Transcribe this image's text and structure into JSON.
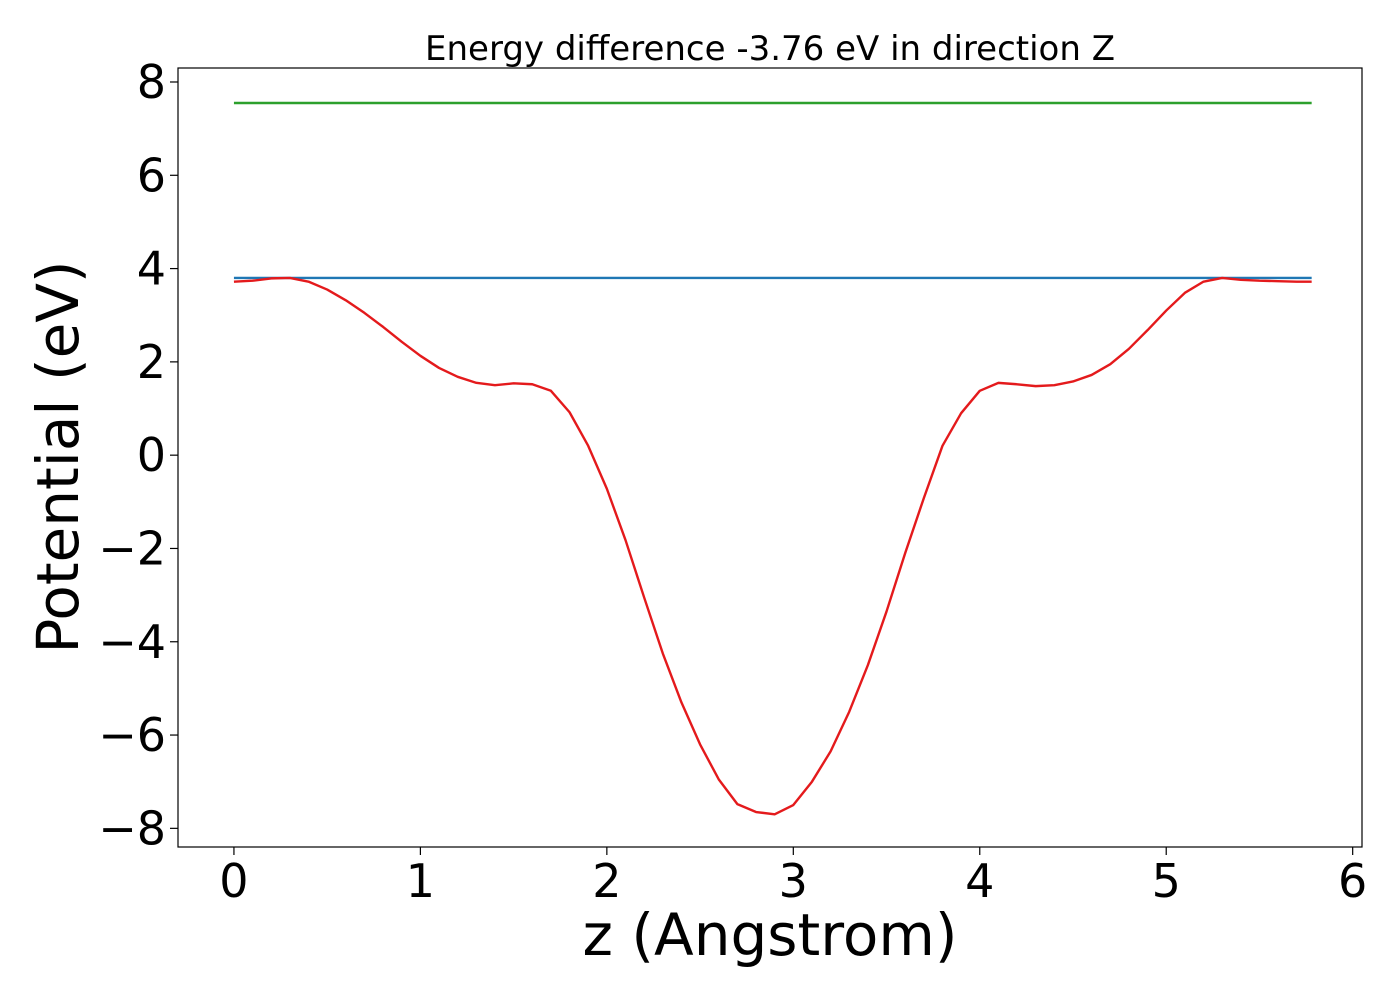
{
  "chart_data": {
    "type": "line",
    "title": "Energy difference -3.76 eV in direction Z",
    "xlabel": "z (Angstrom)",
    "ylabel": "Potential (eV)",
    "xlim": [
      -0.3,
      6.05
    ],
    "ylim": [
      -8.4,
      8.3
    ],
    "xticks": [
      0,
      1,
      2,
      3,
      4,
      5,
      6
    ],
    "xtick_labels": [
      "0",
      "1",
      "2",
      "3",
      "4",
      "5",
      "6"
    ],
    "yticks": [
      8,
      6,
      4,
      2,
      0,
      -2,
      -4,
      -6,
      -8
    ],
    "ytick_labels": [
      "8",
      "6",
      "4",
      "2",
      "0",
      "−2",
      "−4",
      "−6",
      "−8"
    ],
    "grid": false,
    "series": [
      {
        "color": "#2ca02c",
        "x": [
          0,
          5.78
        ],
        "y": [
          7.55,
          7.55
        ]
      },
      {
        "color": "#1f77b4",
        "x": [
          0,
          5.78
        ],
        "y": [
          3.8,
          3.8
        ]
      },
      {
        "color": "#e41a1c",
        "x": [
          0,
          0.1,
          0.2,
          0.3,
          0.4,
          0.5,
          0.6,
          0.7,
          0.8,
          0.9,
          1.0,
          1.1,
          1.2,
          1.3,
          1.4,
          1.5,
          1.6,
          1.7,
          1.8,
          1.9,
          2.0,
          2.1,
          2.2,
          2.3,
          2.4,
          2.5,
          2.6,
          2.7,
          2.8,
          2.9,
          3.0,
          3.1,
          3.2,
          3.3,
          3.4,
          3.5,
          3.6,
          3.7,
          3.8,
          3.9,
          4.0,
          4.1,
          4.2,
          4.3,
          4.4,
          4.5,
          4.6,
          4.7,
          4.8,
          4.9,
          5.0,
          5.1,
          5.2,
          5.3,
          5.4,
          5.5,
          5.6,
          5.7,
          5.78
        ],
        "y": [
          3.72,
          3.74,
          3.79,
          3.8,
          3.72,
          3.55,
          3.32,
          3.05,
          2.75,
          2.43,
          2.13,
          1.87,
          1.68,
          1.55,
          1.5,
          1.54,
          1.52,
          1.38,
          0.92,
          0.2,
          -0.72,
          -1.82,
          -3.05,
          -4.25,
          -5.3,
          -6.2,
          -6.95,
          -7.48,
          -7.65,
          -7.7,
          -7.5,
          -7.0,
          -6.35,
          -5.5,
          -4.5,
          -3.35,
          -2.1,
          -0.92,
          0.2,
          0.9,
          1.38,
          1.55,
          1.52,
          1.48,
          1.5,
          1.58,
          1.72,
          1.95,
          2.28,
          2.68,
          3.1,
          3.48,
          3.72,
          3.8,
          3.76,
          3.74,
          3.73,
          3.72,
          3.72
        ]
      }
    ]
  }
}
